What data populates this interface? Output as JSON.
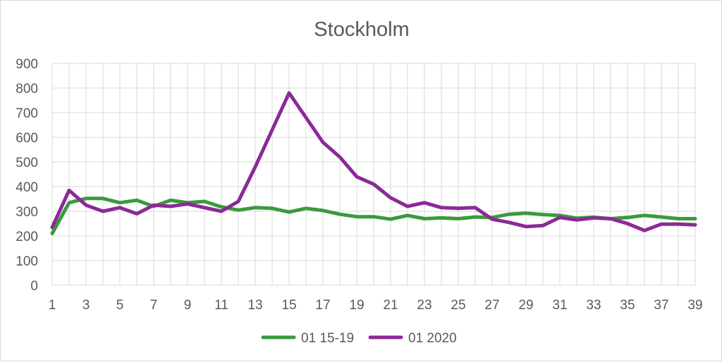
{
  "chart_data": {
    "type": "line",
    "title": "Stockholm",
    "xlabel": "",
    "ylabel": "",
    "x": [
      1,
      2,
      3,
      4,
      5,
      6,
      7,
      8,
      9,
      10,
      11,
      12,
      13,
      14,
      15,
      16,
      17,
      18,
      19,
      20,
      21,
      22,
      23,
      24,
      25,
      26,
      27,
      28,
      29,
      30,
      31,
      32,
      33,
      34,
      35,
      36,
      37,
      38,
      39
    ],
    "x_tick_labels": [
      "1",
      "3",
      "5",
      "7",
      "9",
      "11",
      "13",
      "15",
      "17",
      "19",
      "21",
      "23",
      "25",
      "27",
      "29",
      "31",
      "33",
      "35",
      "37",
      "39"
    ],
    "y_tick_labels": [
      "0",
      "100",
      "200",
      "300",
      "400",
      "500",
      "600",
      "700",
      "800",
      "900"
    ],
    "xlim": [
      1,
      39
    ],
    "ylim": [
      0,
      900
    ],
    "grid": true,
    "legend_position": "bottom",
    "series": [
      {
        "name": "01 15-19",
        "color": "#3a9a3e",
        "values": [
          210,
          335,
          352,
          352,
          335,
          345,
          320,
          345,
          335,
          340,
          318,
          305,
          315,
          312,
          297,
          312,
          303,
          288,
          278,
          278,
          268,
          283,
          270,
          273,
          270,
          277,
          275,
          288,
          292,
          287,
          283,
          272,
          276,
          270,
          275,
          283,
          277,
          270,
          270
        ]
      },
      {
        "name": "01 2020",
        "color": "#8b2a96",
        "values": [
          235,
          385,
          325,
          300,
          315,
          290,
          325,
          320,
          330,
          315,
          300,
          340,
          480,
          630,
          780,
          680,
          580,
          520,
          440,
          410,
          355,
          320,
          335,
          315,
          312,
          315,
          268,
          255,
          238,
          242,
          275,
          265,
          273,
          270,
          250,
          222,
          248,
          248,
          245
        ]
      }
    ]
  }
}
